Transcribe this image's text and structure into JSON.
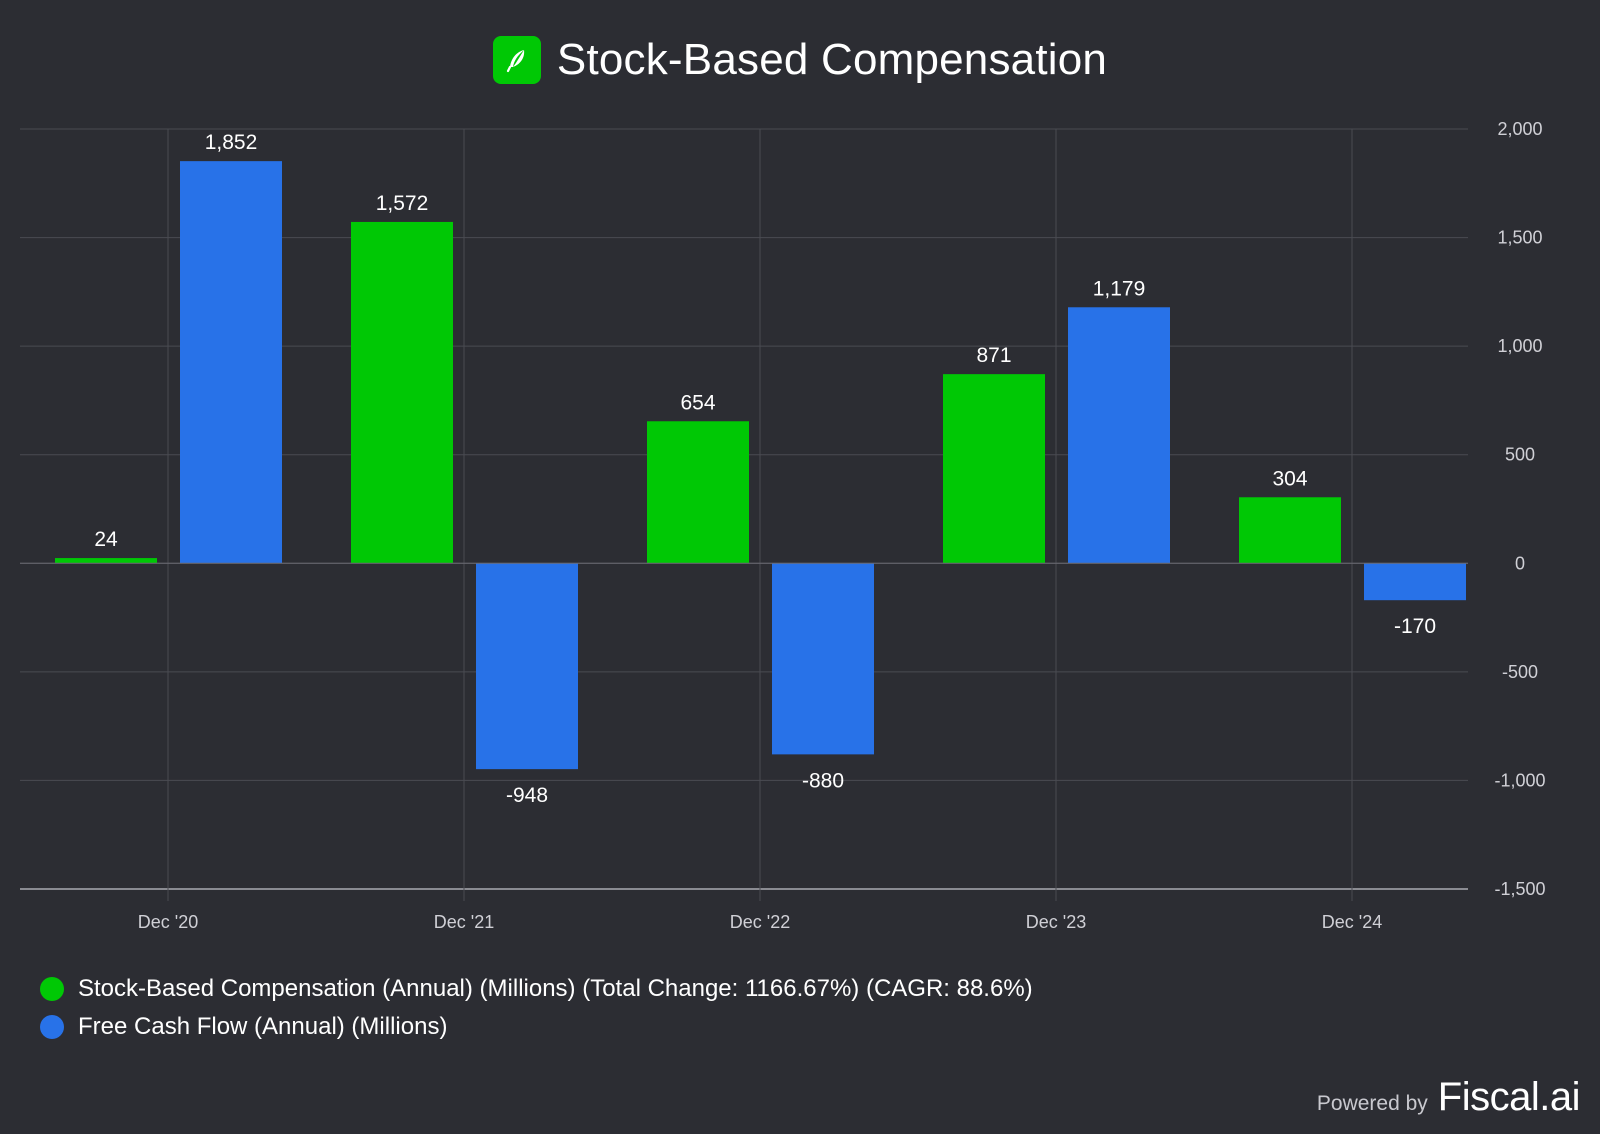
{
  "header": {
    "title": "Stock-Based Compensation"
  },
  "colors": {
    "background": "#2c2d33",
    "sbc": "#00c805",
    "fcf": "#2872e8",
    "grid": "#4a4b52",
    "axis_text": "#d0d0d6"
  },
  "chart_data": {
    "type": "bar",
    "categories": [
      "Dec '20",
      "Dec '21",
      "Dec '22",
      "Dec '23",
      "Dec '24"
    ],
    "series": [
      {
        "name": "Stock-Based Compensation (Annual) (Millions) (Total Change: 1166.67%) (CAGR: 88.6%)",
        "color": "#00c805",
        "values": [
          24,
          1572,
          654,
          871,
          304
        ],
        "labels": [
          "24",
          "1,572",
          "654",
          "871",
          "304"
        ]
      },
      {
        "name": "Free Cash Flow (Annual) (Millions)",
        "color": "#2872e8",
        "values": [
          1852,
          -948,
          -880,
          1179,
          -170
        ],
        "labels": [
          "1,852",
          "-948",
          "-880",
          "1,179",
          "-170"
        ]
      }
    ],
    "ylim": [
      -1500,
      2000
    ],
    "y_ticks": [
      2000,
      1500,
      1000,
      500,
      0,
      -500,
      -1000,
      -1500
    ],
    "y_tick_labels": [
      "2,000",
      "1,500",
      "1,000",
      "500",
      "0",
      "-500",
      "-1,000",
      "-1,500"
    ],
    "y_axis_side": "right",
    "grid": true,
    "legend_position": "bottom-left"
  },
  "legend": {
    "items": [
      {
        "label": "Stock-Based Compensation (Annual) (Millions) (Total Change: 1166.67%) (CAGR: 88.6%)"
      },
      {
        "label": "Free Cash Flow (Annual) (Millions)"
      }
    ]
  },
  "footer": {
    "powered_by": "Powered by",
    "brand": "Fiscal.ai"
  }
}
